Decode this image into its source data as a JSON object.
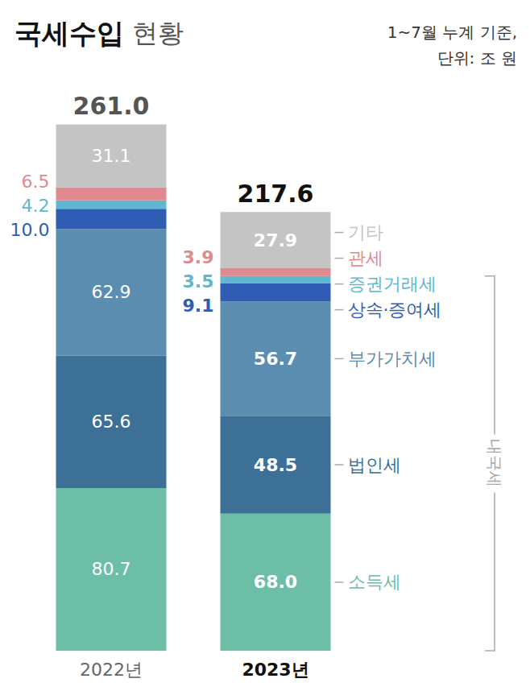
{
  "chart_data": {
    "type": "bar",
    "title": "국세수입 현황",
    "notes": [
      "1~7월 누계 기준,",
      "단위: 조 원"
    ],
    "categories": [
      "2022년",
      "2023년"
    ],
    "series": [
      {
        "name": "소득세",
        "color": "#6cbfa6",
        "values": [
          80.7,
          68.0
        ],
        "value_labels": [
          "80.7",
          "68.0"
        ]
      },
      {
        "name": "법인세",
        "color": "#3d7096",
        "values": [
          65.6,
          48.5
        ],
        "value_labels": [
          "65.6",
          "48.5"
        ]
      },
      {
        "name": "부가가치세",
        "color": "#5a8db0",
        "values": [
          62.9,
          56.7
        ],
        "value_labels": [
          "62.9",
          "56.7"
        ]
      },
      {
        "name": "상속·증여세",
        "color": "#2f5db4",
        "values": [
          10.0,
          9.1
        ],
        "value_labels": [
          "10.0",
          "9.1"
        ]
      },
      {
        "name": "증권거래세",
        "color": "#5fb8cf",
        "values": [
          4.2,
          3.5
        ],
        "value_labels": [
          "4.2",
          "3.5"
        ]
      },
      {
        "name": "관세",
        "color": "#e0898e",
        "values": [
          6.5,
          3.9
        ],
        "value_labels": [
          "6.5",
          "3.9"
        ]
      },
      {
        "name": "기타",
        "color": "#c4c4c4",
        "values": [
          31.1,
          27.9
        ],
        "value_labels": [
          "31.1",
          "27.9"
        ]
      }
    ],
    "totals": [
      261.0,
      217.6
    ],
    "total_labels": [
      "261.0",
      "217.6"
    ],
    "annotations": [
      {
        "text": "내국세",
        "series": [
          "소득세",
          "법인세",
          "부가가치세",
          "상속·증여세",
          "증권거래세"
        ]
      }
    ],
    "ylim": [
      0,
      280
    ],
    "stacked": true,
    "data_labels": true,
    "tick_labels": "x",
    "grid": false,
    "legend": "right"
  }
}
